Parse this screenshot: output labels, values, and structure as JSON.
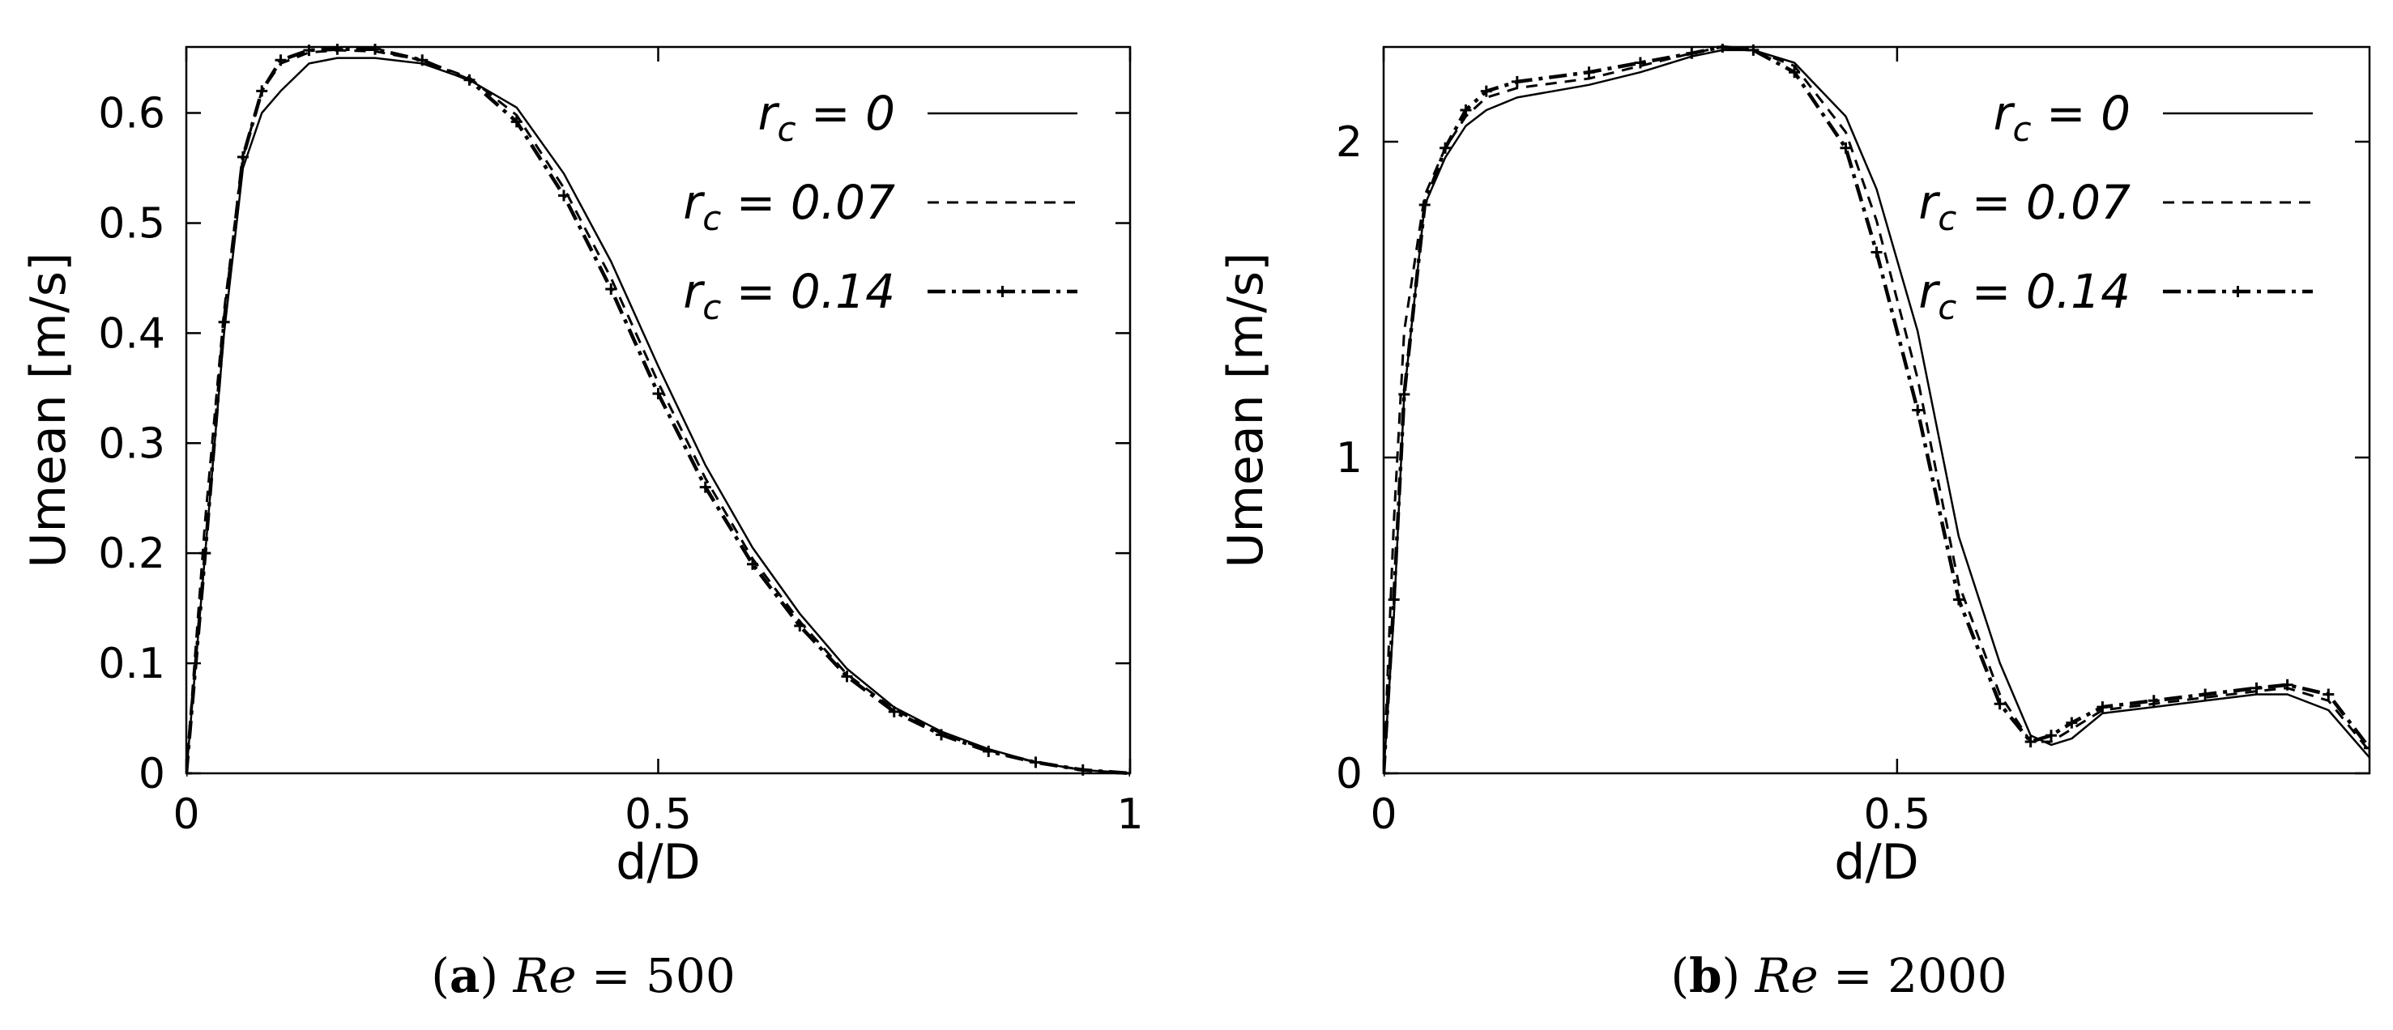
{
  "chart_data": [
    {
      "type": "line",
      "caption": {
        "label": "(a)",
        "text": "Re = 500"
      },
      "xlabel": "d/D",
      "ylabel": "Umean [m/s]",
      "xlim": [
        0,
        1
      ],
      "ylim": [
        0,
        0.66
      ],
      "xticks": [
        0,
        0.5,
        1
      ],
      "xtick_labels": [
        "0",
        "0.5",
        "1"
      ],
      "yticks": [
        0,
        0.1,
        0.2,
        0.3,
        0.4,
        0.5,
        0.6
      ],
      "ytick_labels": [
        "0",
        "0.1",
        "0.2",
        "0.3",
        "0.4",
        "0.5",
        "0.6"
      ],
      "grid": false,
      "legend_position": "top-right",
      "series": [
        {
          "name": "r_c = 0",
          "label_parts": {
            "r": "r",
            "sub": "c",
            "val": " = 0"
          },
          "style": "solid",
          "x": [
            0,
            0.02,
            0.04,
            0.06,
            0.08,
            0.1,
            0.13,
            0.16,
            0.2,
            0.25,
            0.3,
            0.35,
            0.4,
            0.45,
            0.5,
            0.55,
            0.6,
            0.65,
            0.7,
            0.75,
            0.8,
            0.85,
            0.9,
            0.95,
            1
          ],
          "y": [
            0,
            0.2,
            0.4,
            0.55,
            0.6,
            0.62,
            0.645,
            0.65,
            0.65,
            0.645,
            0.63,
            0.605,
            0.545,
            0.465,
            0.37,
            0.28,
            0.205,
            0.145,
            0.095,
            0.06,
            0.038,
            0.022,
            0.01,
            0.003,
            0
          ]
        },
        {
          "name": "r_c = 0.07",
          "label_parts": {
            "r": "r",
            "sub": "c",
            "val": " = 0.07"
          },
          "style": "dashed",
          "x": [
            0,
            0.02,
            0.04,
            0.06,
            0.08,
            0.1,
            0.13,
            0.16,
            0.2,
            0.25,
            0.3,
            0.35,
            0.4,
            0.45,
            0.5,
            0.55,
            0.6,
            0.65,
            0.7,
            0.75,
            0.8,
            0.85,
            0.9,
            0.95,
            1
          ],
          "y": [
            0,
            0.23,
            0.42,
            0.56,
            0.62,
            0.645,
            0.655,
            0.657,
            0.656,
            0.648,
            0.632,
            0.598,
            0.532,
            0.45,
            0.355,
            0.268,
            0.195,
            0.138,
            0.09,
            0.058,
            0.036,
            0.021,
            0.01,
            0.003,
            0
          ]
        },
        {
          "name": "r_c = 0.14",
          "label_parts": {
            "r": "r",
            "sub": "c",
            "val": " = 0.14"
          },
          "style": "dashdot-marker",
          "x": [
            0,
            0.02,
            0.04,
            0.06,
            0.08,
            0.1,
            0.13,
            0.16,
            0.2,
            0.25,
            0.3,
            0.35,
            0.4,
            0.45,
            0.5,
            0.55,
            0.6,
            0.65,
            0.7,
            0.75,
            0.8,
            0.85,
            0.9,
            0.95,
            1
          ],
          "y": [
            0,
            0.2,
            0.41,
            0.56,
            0.62,
            0.648,
            0.657,
            0.658,
            0.658,
            0.648,
            0.63,
            0.592,
            0.525,
            0.44,
            0.345,
            0.26,
            0.19,
            0.134,
            0.088,
            0.056,
            0.035,
            0.02,
            0.01,
            0.003,
            0
          ]
        }
      ]
    },
    {
      "type": "line",
      "caption": {
        "label": "(b)",
        "text": "Re = 2000"
      },
      "xlabel": "d/D",
      "ylabel": "Umean [m/s]",
      "xlim": [
        0,
        0.96
      ],
      "ylim": [
        0,
        2.3
      ],
      "xticks": [
        0,
        0.5
      ],
      "xtick_labels": [
        "0",
        "0.5"
      ],
      "yticks": [
        0,
        1,
        2
      ],
      "ytick_labels": [
        "0",
        "1",
        "2"
      ],
      "grid": false,
      "legend_position": "top-right",
      "series": [
        {
          "name": "r_c = 0",
          "label_parts": {
            "r": "r",
            "sub": "c",
            "val": " = 0"
          },
          "style": "solid",
          "x": [
            0,
            0.01,
            0.02,
            0.04,
            0.06,
            0.08,
            0.1,
            0.13,
            0.2,
            0.25,
            0.3,
            0.33,
            0.36,
            0.4,
            0.45,
            0.48,
            0.52,
            0.56,
            0.6,
            0.63,
            0.65,
            0.67,
            0.7,
            0.75,
            0.8,
            0.85,
            0.88,
            0.92,
            0.96
          ],
          "y": [
            0,
            0.5,
            1.2,
            1.8,
            1.95,
            2.05,
            2.1,
            2.14,
            2.18,
            2.22,
            2.27,
            2.29,
            2.29,
            2.25,
            2.08,
            1.85,
            1.4,
            0.75,
            0.35,
            0.12,
            0.09,
            0.11,
            0.19,
            0.21,
            0.23,
            0.25,
            0.25,
            0.2,
            0.05
          ]
        },
        {
          "name": "r_c = 0.07",
          "label_parts": {
            "r": "r",
            "sub": "c",
            "val": " = 0.07"
          },
          "style": "dashed",
          "x": [
            0,
            0.01,
            0.02,
            0.04,
            0.06,
            0.08,
            0.1,
            0.13,
            0.2,
            0.25,
            0.3,
            0.33,
            0.36,
            0.4,
            0.45,
            0.48,
            0.52,
            0.56,
            0.6,
            0.63,
            0.65,
            0.67,
            0.7,
            0.75,
            0.8,
            0.85,
            0.88,
            0.92,
            0.96
          ],
          "y": [
            0,
            0.8,
            1.4,
            1.83,
            1.98,
            2.08,
            2.14,
            2.17,
            2.2,
            2.24,
            2.28,
            2.3,
            2.29,
            2.24,
            2.03,
            1.75,
            1.25,
            0.6,
            0.25,
            0.1,
            0.1,
            0.14,
            0.2,
            0.22,
            0.24,
            0.26,
            0.27,
            0.23,
            0.07
          ]
        },
        {
          "name": "r_c = 0.14",
          "label_parts": {
            "r": "r",
            "sub": "c",
            "val": " = 0.14"
          },
          "style": "dashdot-marker",
          "x": [
            0,
            0.01,
            0.02,
            0.04,
            0.06,
            0.08,
            0.1,
            0.13,
            0.2,
            0.25,
            0.3,
            0.33,
            0.36,
            0.4,
            0.45,
            0.48,
            0.52,
            0.56,
            0.6,
            0.63,
            0.65,
            0.67,
            0.7,
            0.75,
            0.8,
            0.85,
            0.88,
            0.92,
            0.96
          ],
          "y": [
            0,
            0.55,
            1.2,
            1.8,
            1.98,
            2.1,
            2.16,
            2.19,
            2.22,
            2.25,
            2.28,
            2.3,
            2.29,
            2.22,
            1.98,
            1.65,
            1.15,
            0.55,
            0.22,
            0.1,
            0.12,
            0.16,
            0.21,
            0.23,
            0.25,
            0.27,
            0.28,
            0.25,
            0.08
          ]
        }
      ]
    }
  ]
}
